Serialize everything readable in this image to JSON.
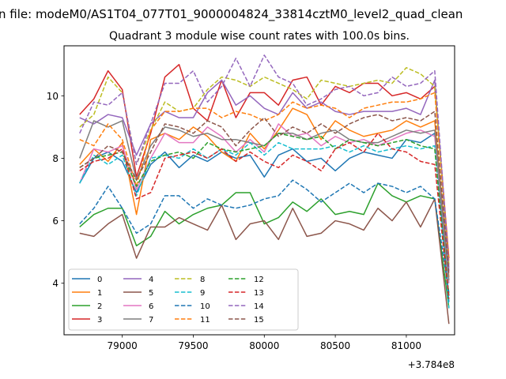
{
  "chart_data": {
    "type": "line",
    "suptitle": "n file: modeM0/AS1T04_077T01_9000004824_33814cztM0_level2_quad_clean",
    "title": "Quadrant 3 module wise count rates with 100.0s bins.",
    "xlabel": "",
    "ylabel": "",
    "x_offset_label": "+3.784e8",
    "xlim": [
      78590,
      81340
    ],
    "ylim": [
      2.35,
      11.6
    ],
    "x_ticks": [
      79000,
      79500,
      80000,
      80500,
      81000
    ],
    "x_tick_labels": [
      "79000",
      "79500",
      "80000",
      "80500",
      "81000"
    ],
    "y_ticks": [
      4,
      6,
      8,
      10
    ],
    "y_tick_labels": [
      "4",
      "6",
      "8",
      "10"
    ],
    "x": [
      78700,
      78800,
      78900,
      79000,
      79100,
      79200,
      79300,
      79400,
      79500,
      79600,
      79700,
      79800,
      79900,
      80000,
      80100,
      80200,
      80300,
      80400,
      80500,
      80600,
      80700,
      80800,
      80900,
      81000,
      81100,
      81200,
      81300
    ],
    "legend": {
      "location": "lower-left",
      "columns": 4
    },
    "series": [
      {
        "name": "0",
        "color": "#1f77b4",
        "dash": "solid",
        "values": [
          7.2,
          8.0,
          8.2,
          7.9,
          6.9,
          7.8,
          8.2,
          7.7,
          8.1,
          7.9,
          8.2,
          8.0,
          8.1,
          7.4,
          8.1,
          8.3,
          7.9,
          8.0,
          7.6,
          8.0,
          8.2,
          8.1,
          8.0,
          8.6,
          8.5,
          8.8,
          3.4
        ]
      },
      {
        "name": "1",
        "color": "#ff7f0e",
        "dash": "solid",
        "values": [
          7.8,
          8.3,
          7.9,
          8.5,
          6.2,
          8.6,
          8.8,
          8.6,
          9.0,
          8.7,
          8.2,
          7.9,
          8.8,
          8.3,
          8.9,
          9.6,
          9.4,
          8.6,
          9.2,
          8.9,
          8.7,
          8.8,
          8.9,
          9.2,
          9.0,
          9.2,
          4.2
        ]
      },
      {
        "name": "2",
        "color": "#2ca02c",
        "dash": "solid",
        "values": [
          5.8,
          6.2,
          6.4,
          6.4,
          5.2,
          5.5,
          6.3,
          5.9,
          6.2,
          6.4,
          6.5,
          6.9,
          6.9,
          5.9,
          6.1,
          6.6,
          6.3,
          6.7,
          6.2,
          6.3,
          6.2,
          7.2,
          6.8,
          6.6,
          6.8,
          6.7,
          3.2
        ]
      },
      {
        "name": "3",
        "color": "#d62728",
        "dash": "solid",
        "values": [
          9.4,
          9.9,
          10.8,
          10.2,
          7.4,
          8.8,
          10.6,
          11.0,
          9.6,
          9.2,
          10.5,
          9.3,
          10.1,
          10.1,
          9.7,
          10.5,
          10.6,
          9.7,
          10.3,
          10.1,
          10.4,
          10.4,
          10.0,
          10.1,
          9.9,
          10.3,
          4.8
        ]
      },
      {
        "name": "4",
        "color": "#9467bd",
        "dash": "solid",
        "values": [
          9.3,
          9.1,
          9.4,
          9.3,
          8.1,
          9.1,
          9.5,
          9.3,
          9.3,
          10.1,
          10.5,
          9.7,
          10.0,
          9.6,
          9.4,
          10.1,
          9.6,
          9.8,
          9.5,
          9.4,
          9.5,
          9.5,
          9.5,
          9.6,
          9.4,
          10.5,
          4.4
        ]
      },
      {
        "name": "5",
        "color": "#8c564b",
        "dash": "solid",
        "values": [
          5.6,
          5.5,
          5.9,
          6.2,
          4.8,
          5.8,
          5.8,
          6.1,
          5.9,
          5.7,
          6.5,
          5.4,
          5.9,
          6.0,
          5.4,
          6.4,
          5.5,
          5.6,
          6.0,
          5.9,
          5.7,
          6.4,
          6.0,
          6.6,
          5.8,
          6.7,
          2.7
        ]
      },
      {
        "name": "6",
        "color": "#e377c2",
        "dash": "solid",
        "values": [
          7.2,
          8.3,
          8.2,
          8.4,
          7.0,
          8.0,
          8.8,
          8.5,
          8.5,
          9.0,
          8.7,
          8.2,
          8.6,
          8.2,
          9.1,
          8.7,
          8.8,
          8.4,
          8.7,
          8.5,
          8.6,
          8.4,
          8.6,
          8.8,
          8.9,
          8.7,
          4.0
        ]
      },
      {
        "name": "7",
        "color": "#7f7f7f",
        "dash": "solid",
        "values": [
          8.0,
          9.2,
          9.0,
          9.2,
          7.3,
          8.4,
          9.0,
          8.9,
          8.7,
          8.8,
          8.6,
          8.6,
          8.5,
          8.4,
          8.8,
          8.8,
          8.6,
          8.8,
          8.9,
          8.6,
          8.5,
          8.5,
          8.7,
          8.9,
          8.8,
          8.9,
          4.1
        ]
      },
      {
        "name": "8",
        "color": "#bcbd22",
        "dash": "dashed",
        "values": [
          9.0,
          9.4,
          10.6,
          10.1,
          7.8,
          8.9,
          9.8,
          9.5,
          9.6,
          10.2,
          10.6,
          10.5,
          10.3,
          10.6,
          10.4,
          10.2,
          9.9,
          10.5,
          10.4,
          10.3,
          10.4,
          10.5,
          10.4,
          10.9,
          10.7,
          10.3,
          4.6
        ]
      },
      {
        "name": "9",
        "color": "#17becf",
        "dash": "dashed",
        "values": [
          7.2,
          8.1,
          7.8,
          8.1,
          6.8,
          8.0,
          8.1,
          8.0,
          8.3,
          8.0,
          8.3,
          8.1,
          8.5,
          8.1,
          8.5,
          8.3,
          8.3,
          8.3,
          8.4,
          8.2,
          8.4,
          8.2,
          8.3,
          8.4,
          8.3,
          8.4,
          3.2
        ]
      },
      {
        "name": "10",
        "color": "#1f77b4",
        "dash": "dashed",
        "values": [
          5.9,
          6.4,
          7.1,
          6.4,
          5.6,
          5.9,
          6.8,
          6.8,
          6.4,
          6.7,
          6.5,
          6.4,
          6.5,
          6.7,
          6.8,
          7.3,
          7.0,
          6.6,
          6.9,
          7.2,
          6.9,
          7.2,
          7.1,
          6.9,
          7.1,
          6.7,
          3.7
        ]
      },
      {
        "name": "11",
        "color": "#ff7f0e",
        "dash": "dashed",
        "values": [
          8.6,
          8.4,
          9.1,
          8.6,
          7.1,
          8.9,
          9.5,
          9.5,
          9.6,
          9.6,
          9.3,
          9.5,
          9.4,
          9.2,
          9.4,
          9.8,
          9.6,
          9.7,
          9.6,
          9.3,
          9.6,
          9.7,
          9.8,
          9.8,
          9.9,
          10.1,
          4.7
        ]
      },
      {
        "name": "12",
        "color": "#2ca02c",
        "dash": "dashed",
        "values": [
          7.7,
          8.0,
          8.1,
          8.2,
          7.1,
          7.9,
          8.1,
          8.2,
          8.0,
          8.5,
          8.3,
          8.2,
          8.3,
          8.4,
          8.8,
          8.7,
          8.6,
          8.7,
          8.3,
          8.6,
          8.5,
          8.4,
          8.5,
          8.6,
          8.4,
          8.3,
          3.6
        ]
      },
      {
        "name": "13",
        "color": "#d62728",
        "dash": "dashed",
        "values": [
          7.6,
          7.9,
          8.0,
          8.3,
          6.7,
          6.9,
          8.0,
          8.1,
          8.2,
          8.0,
          8.3,
          7.9,
          8.2,
          7.9,
          7.7,
          8.1,
          7.9,
          7.6,
          8.3,
          8.5,
          8.2,
          8.8,
          8.3,
          8.2,
          7.9,
          7.8,
          3.5
        ]
      },
      {
        "name": "14",
        "color": "#9467bd",
        "dash": "dashed",
        "values": [
          8.8,
          9.8,
          9.7,
          10.1,
          7.8,
          9.1,
          10.4,
          10.4,
          10.8,
          9.8,
          10.3,
          11.2,
          10.3,
          11.3,
          10.6,
          10.4,
          9.7,
          9.9,
          10.2,
          10.3,
          10.0,
          10.1,
          10.6,
          10.3,
          10.4,
          10.8,
          4.5
        ]
      },
      {
        "name": "15",
        "color": "#8c564b",
        "dash": "dashed",
        "values": [
          7.7,
          8.0,
          8.4,
          8.2,
          7.3,
          8.2,
          9.1,
          9.0,
          8.8,
          9.2,
          9.0,
          8.4,
          8.9,
          9.3,
          8.7,
          9.0,
          8.8,
          9.1,
          8.8,
          9.1,
          9.3,
          9.4,
          9.2,
          9.3,
          9.2,
          9.5,
          4.3
        ]
      }
    ]
  }
}
